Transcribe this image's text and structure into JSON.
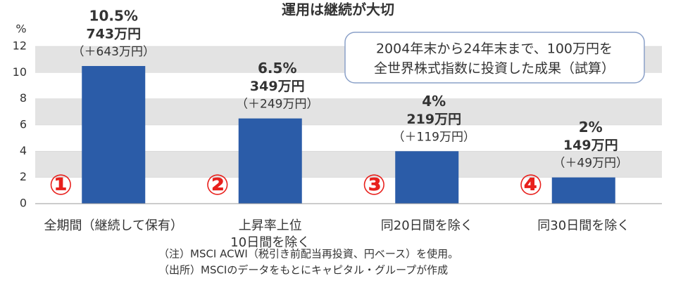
{
  "chart_data": {
    "type": "bar",
    "title": "運用は継続が大切",
    "y_unit": "%",
    "categories": [
      "全期間（継続して保有）",
      "上昇率上位\n10日間を除く",
      "同20日間を除く",
      "同30日間を除く"
    ],
    "markers": [
      "①",
      "②",
      "③",
      "④"
    ],
    "values": [
      10.5,
      6.5,
      4,
      2
    ],
    "value_labels": [
      "10.5%",
      "6.5%",
      "4%",
      "2%"
    ],
    "amounts": [
      "743万円",
      "349万円",
      "219万円",
      "149万円"
    ],
    "gains": [
      "（＋643万円）",
      "（＋249万円）",
      "（＋119万円）",
      "（＋49万円）"
    ],
    "color": "#2b5ca8",
    "ylim": [
      0,
      12
    ],
    "yticks": [
      0,
      2,
      4,
      6,
      8,
      10,
      12
    ],
    "annotation": [
      "2004年末から24年末まで、100万円を",
      "全世界株式指数に投資した成果（試算）"
    ],
    "notes": [
      "（注）MSCI ACWI（税引き前配当再投資、円ベース）を使用。",
      "（出所）MSCIのデータをもとにキャピタル・グループが作成"
    ]
  }
}
